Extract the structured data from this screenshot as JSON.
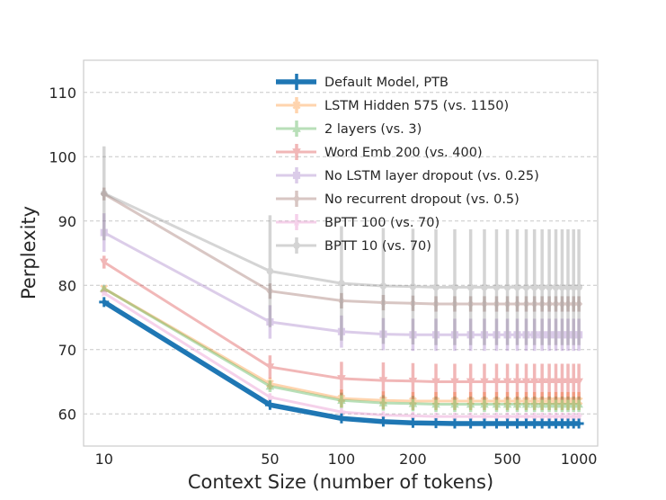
{
  "chart_data": {
    "type": "line",
    "title": "",
    "xlabel": "Context Size (number of tokens)",
    "ylabel": "Perplexity",
    "xscale": "log",
    "xlim": [
      8.2,
      1200
    ],
    "ylim": [
      55,
      115
    ],
    "grid": true,
    "legend_position": "top-right",
    "xticks": [
      10,
      50,
      100,
      200,
      500,
      1000
    ],
    "xtick_labels": [
      "10",
      "50",
      "100",
      "200",
      "500",
      "1000"
    ],
    "yticks": [
      60,
      70,
      80,
      90,
      100,
      110
    ],
    "ytick_labels": [
      "60",
      "70",
      "80",
      "90",
      "100",
      "110"
    ],
    "x": [
      10,
      50,
      100,
      150,
      200,
      250,
      300,
      350,
      400,
      450,
      500,
      550,
      600,
      650,
      700,
      750,
      800,
      850,
      900,
      950,
      1000
    ],
    "series": [
      {
        "name": "Default Model, PTB",
        "color": "#1f77b4",
        "marker": "plus",
        "values": [
          77.4,
          61.4,
          59.3,
          58.8,
          58.6,
          58.55,
          58.5,
          58.5,
          58.5,
          58.5,
          58.5,
          58.5,
          58.5,
          58.5,
          58.5,
          58.5,
          58.5,
          58.5,
          58.5,
          58.5,
          58.5
        ],
        "errors": [
          0.3,
          0.3,
          0.3,
          0.3,
          0.3,
          0.3,
          0.3,
          0.3,
          0.3,
          0.3,
          0.3,
          0.3,
          0.3,
          0.3,
          0.3,
          0.3,
          0.3,
          0.3,
          0.3,
          0.3,
          0.3
        ]
      },
      {
        "name": "LSTM Hidden 575 (vs. 1150)",
        "color": "#ff7f0e",
        "marker": "x",
        "values": [
          79.5,
          64.7,
          62.4,
          62.1,
          62.0,
          62.0,
          62.0,
          62.0,
          62.0,
          62.0,
          62.0,
          62.0,
          62.0,
          62.0,
          62.0,
          62.0,
          62.0,
          62.0,
          62.0,
          62.0,
          62.0
        ],
        "errors": [
          0.4,
          0.9,
          1.4,
          1.4,
          1.4,
          1.4,
          1.4,
          1.4,
          1.4,
          1.4,
          1.4,
          1.4,
          1.4,
          1.4,
          1.4,
          1.4,
          1.4,
          1.4,
          1.4,
          1.4,
          1.4
        ]
      },
      {
        "name": "2 layers (vs. 3)",
        "color": "#2ca02c",
        "marker": "triangle-up",
        "values": [
          79.5,
          64.3,
          62.1,
          61.7,
          61.6,
          61.5,
          61.5,
          61.5,
          61.5,
          61.5,
          61.5,
          61.5,
          61.5,
          61.5,
          61.5,
          61.5,
          61.5,
          61.5,
          61.5,
          61.5,
          61.5
        ],
        "errors": [
          0.4,
          0.9,
          1.2,
          1.2,
          1.2,
          1.2,
          1.2,
          1.2,
          1.2,
          1.2,
          1.2,
          1.2,
          1.2,
          1.2,
          1.2,
          1.2,
          1.2,
          1.2,
          1.2,
          1.2,
          1.2
        ]
      },
      {
        "name": "Word Emb 200 (vs. 400)",
        "color": "#d62728",
        "marker": "triangle-down",
        "values": [
          83.6,
          67.3,
          65.5,
          65.2,
          65.1,
          65.0,
          65.0,
          65.0,
          65.0,
          65.0,
          65.0,
          65.0,
          65.0,
          65.0,
          65.0,
          65.0,
          65.0,
          65.0,
          65.0,
          65.0,
          65.0
        ],
        "errors": [
          1.0,
          1.8,
          2.6,
          2.8,
          2.8,
          2.8,
          2.8,
          2.8,
          2.8,
          2.8,
          2.8,
          2.8,
          2.8,
          2.8,
          2.8,
          2.8,
          2.8,
          2.8,
          2.8,
          2.8,
          2.8
        ]
      },
      {
        "name": "No LSTM layer dropout (vs. 0.25)",
        "color": "#9467bd",
        "marker": "square",
        "values": [
          88.2,
          74.3,
          72.8,
          72.4,
          72.3,
          72.3,
          72.3,
          72.3,
          72.3,
          72.3,
          72.3,
          72.3,
          72.3,
          72.3,
          72.3,
          72.3,
          72.3,
          72.3,
          72.3,
          72.3,
          72.3
        ],
        "errors": [
          3.0,
          2.6,
          2.5,
          2.5,
          2.5,
          2.5,
          2.5,
          2.5,
          2.5,
          2.5,
          2.5,
          2.5,
          2.5,
          2.5,
          2.5,
          2.5,
          2.5,
          2.5,
          2.5,
          2.5,
          2.5
        ]
      },
      {
        "name": "No recurrent dropout (vs. 0.5)",
        "color": "#8c564b",
        "marker": "diamond",
        "values": [
          94.2,
          79.1,
          77.6,
          77.3,
          77.2,
          77.1,
          77.1,
          77.1,
          77.1,
          77.1,
          77.1,
          77.1,
          77.1,
          77.1,
          77.1,
          77.1,
          77.1,
          77.1,
          77.1,
          77.1,
          77.1
        ],
        "errors": [
          1.0,
          1.2,
          1.2,
          1.2,
          1.2,
          1.2,
          1.2,
          1.2,
          1.2,
          1.2,
          1.2,
          1.2,
          1.2,
          1.2,
          1.2,
          1.2,
          1.2,
          1.2,
          1.2,
          1.2,
          1.2
        ]
      },
      {
        "name": "BPTT 100 (vs. 70)",
        "color": "#e377c2",
        "marker": "star",
        "values": [
          78.8,
          62.6,
          60.3,
          59.8,
          59.7,
          59.6,
          59.6,
          59.6,
          59.6,
          59.6,
          59.6,
          59.6,
          59.6,
          59.6,
          59.6,
          59.6,
          59.6,
          59.6,
          59.6,
          59.6,
          59.6
        ],
        "errors": [
          0.4,
          0.6,
          0.6,
          0.6,
          0.6,
          0.6,
          0.6,
          0.6,
          0.6,
          0.6,
          0.6,
          0.6,
          0.6,
          0.6,
          0.6,
          0.6,
          0.6,
          0.6,
          0.6,
          0.6,
          0.6
        ]
      },
      {
        "name": "BPTT 10 (vs. 70)",
        "color": "#7f7f7f",
        "marker": "circle",
        "values": [
          94.3,
          82.2,
          80.3,
          79.9,
          79.8,
          79.7,
          79.7,
          79.7,
          79.7,
          79.7,
          79.7,
          79.7,
          79.7,
          79.7,
          79.7,
          79.7,
          79.7,
          79.7,
          79.7,
          79.7,
          79.7
        ],
        "errors": [
          7.3,
          8.7,
          8.9,
          9.0,
          9.0,
          9.0,
          9.0,
          9.0,
          9.0,
          9.0,
          9.0,
          9.0,
          9.0,
          9.0,
          9.0,
          9.0,
          9.0,
          9.0,
          9.0,
          9.0,
          9.0
        ]
      }
    ]
  }
}
